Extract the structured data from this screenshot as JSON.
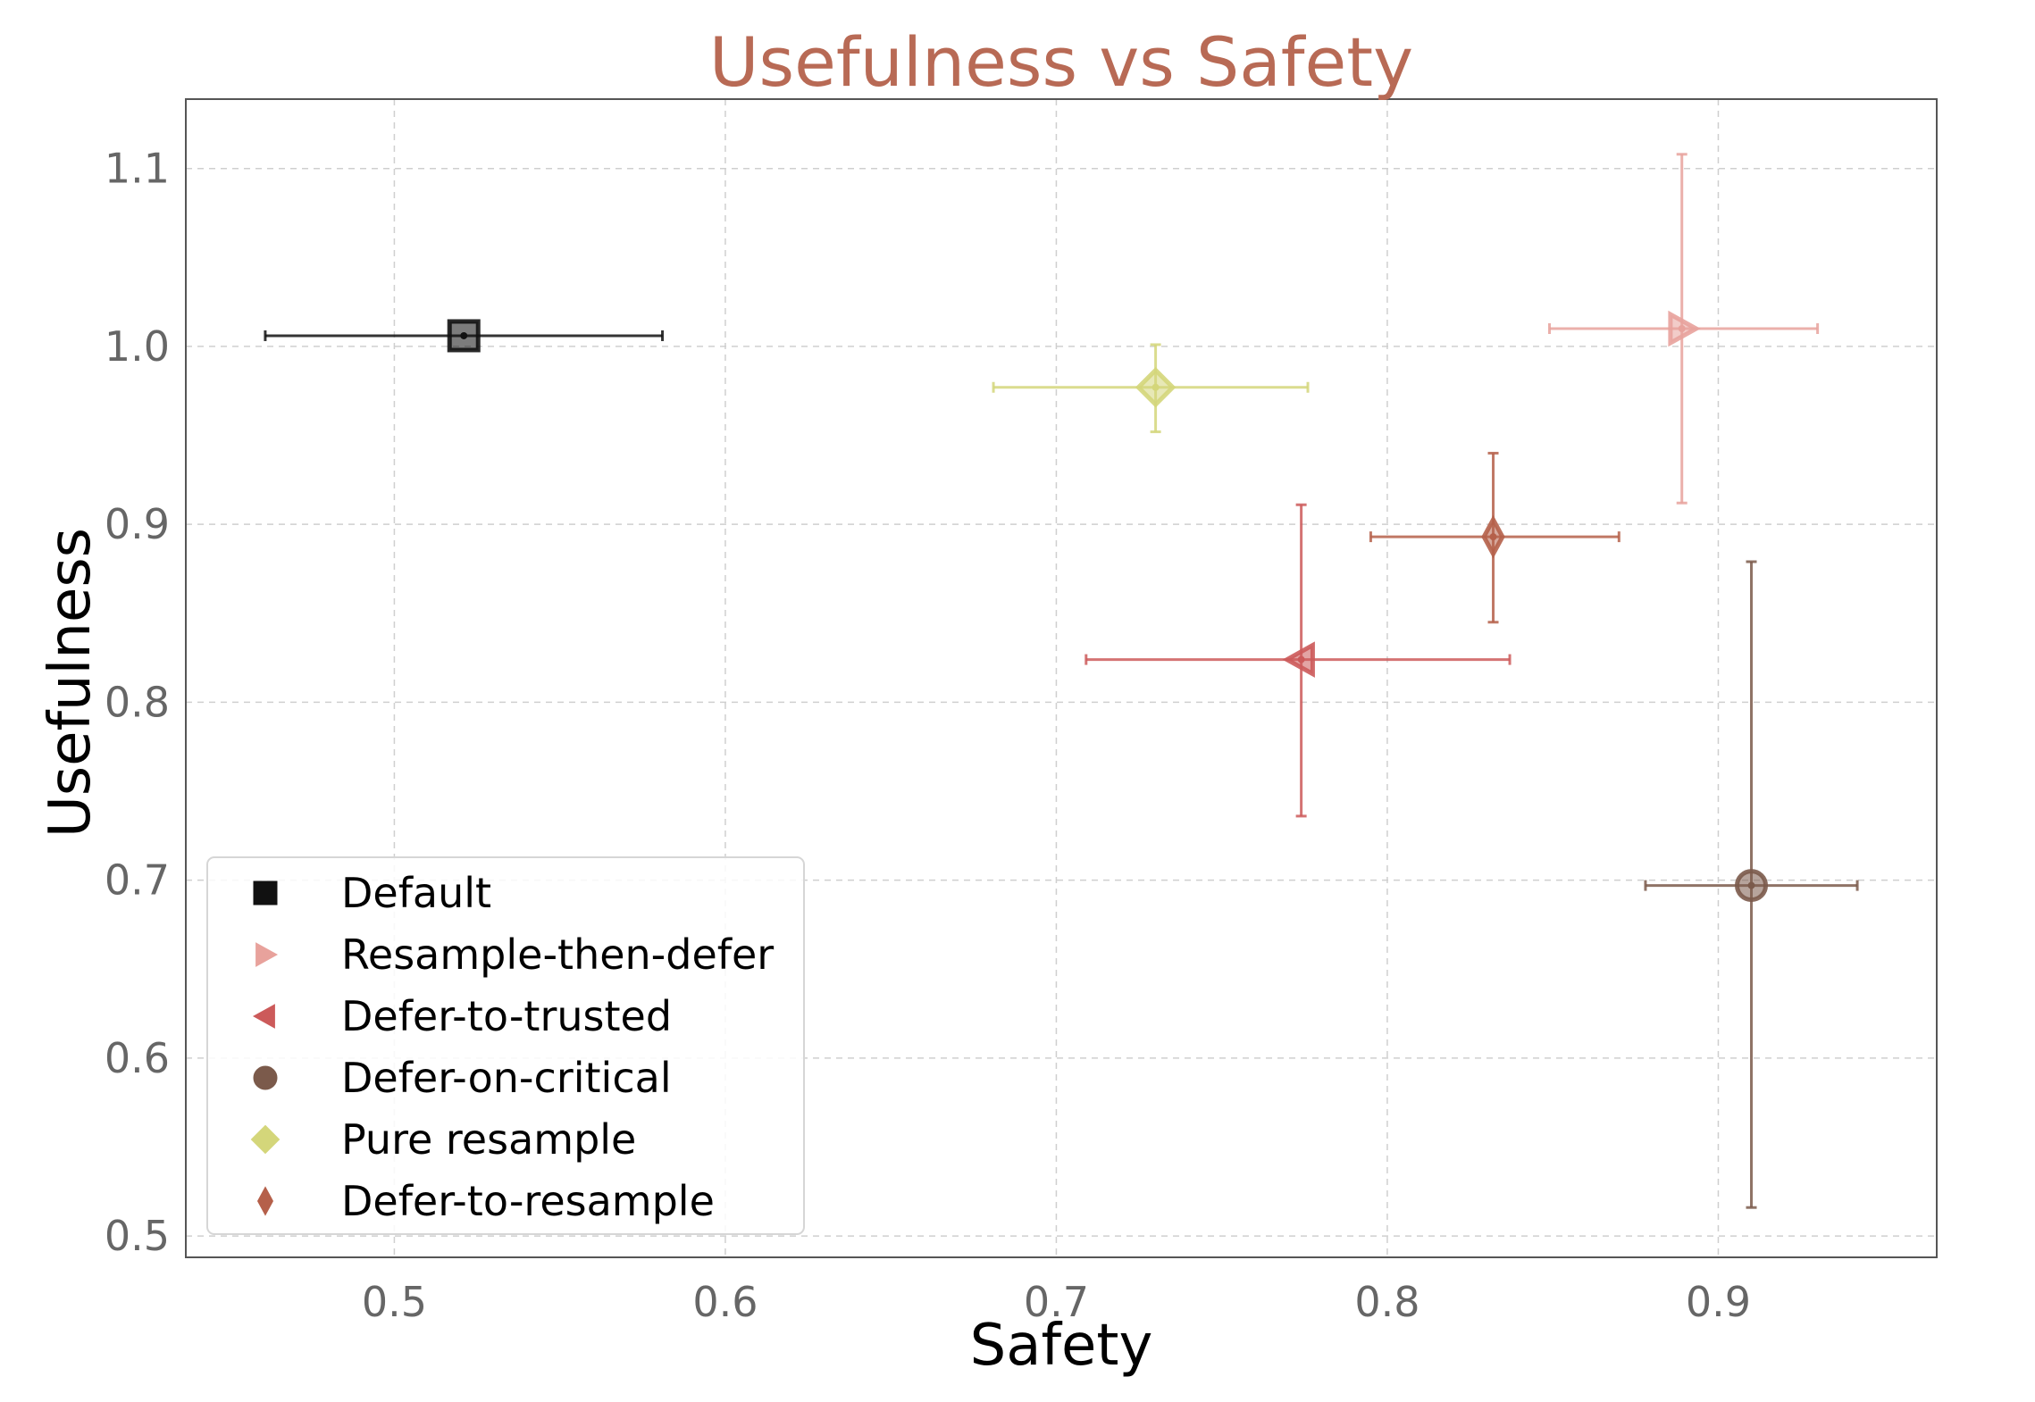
{
  "chart_data": {
    "type": "scatter",
    "title": "Usefulness vs Safety",
    "xlabel": "Safety",
    "ylabel": "Usefulness",
    "xlim": [
      0.437,
      0.966
    ],
    "ylim": [
      0.488,
      1.139
    ],
    "xticks": [
      0.5,
      0.6,
      0.7,
      0.8,
      0.9
    ],
    "xtick_labels": [
      "0.5",
      "0.6",
      "0.7",
      "0.8",
      "0.9"
    ],
    "yticks": [
      0.5,
      0.6,
      0.7,
      0.8,
      0.9,
      1.0,
      1.1
    ],
    "ytick_labels": [
      "0.5",
      "0.6",
      "0.7",
      "0.8",
      "0.9",
      "1.0",
      "1.1"
    ],
    "grid": true,
    "legend_position": "lower-left",
    "series": [
      {
        "name": "Default",
        "marker": "square",
        "color": "#111111",
        "x": 0.521,
        "y": 1.006,
        "xerr": [
          0.461,
          0.581
        ],
        "yerr": [
          1.006,
          1.006
        ]
      },
      {
        "name": "Resample-then-defer",
        "marker": "triangle-right",
        "color": "#e8a29c",
        "x": 0.889,
        "y": 1.01,
        "xerr": [
          0.849,
          0.93
        ],
        "yerr": [
          0.912,
          1.108
        ]
      },
      {
        "name": "Defer-to-trusted",
        "marker": "triangle-left",
        "color": "#cc5a5a",
        "x": 0.774,
        "y": 0.824,
        "xerr": [
          0.709,
          0.837
        ],
        "yerr": [
          0.736,
          0.911
        ]
      },
      {
        "name": "Defer-on-critical",
        "marker": "circle",
        "color": "#7b5a4b",
        "x": 0.91,
        "y": 0.697,
        "xerr": [
          0.878,
          0.942
        ],
        "yerr": [
          0.516,
          0.879
        ]
      },
      {
        "name": "Pure resample",
        "marker": "diamond",
        "color": "#d4d67a",
        "x": 0.73,
        "y": 0.977,
        "xerr": [
          0.681,
          0.776
        ],
        "yerr": [
          0.952,
          1.001
        ]
      },
      {
        "name": "Defer-to-resample",
        "marker": "thin-diamond",
        "color": "#b5604a",
        "x": 0.832,
        "y": 0.893,
        "xerr": [
          0.795,
          0.87
        ],
        "yerr": [
          0.845,
          0.94
        ]
      }
    ]
  }
}
